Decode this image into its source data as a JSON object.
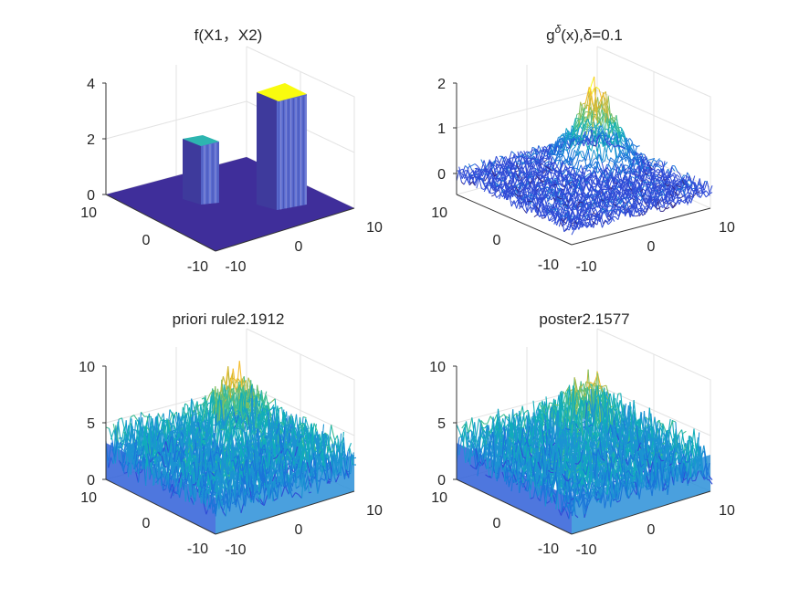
{
  "figure": {
    "layout": "2x2 subplots",
    "view": "3-D surface, default azimuth/elevation"
  },
  "chart_data": [
    {
      "type": "surface",
      "title": "f(X1，X2)",
      "title_parts": null,
      "xlabel": "",
      "ylabel": "",
      "zlabel": "",
      "xlim": [
        -10,
        10
      ],
      "ylim": [
        -10,
        10
      ],
      "zlim": [
        0,
        4
      ],
      "x_ticks": [
        "-10",
        "0",
        "10"
      ],
      "y_ticks": [
        "-10",
        "0",
        "10"
      ],
      "z_ticks": [
        "0",
        "2",
        "4"
      ],
      "grid": true,
      "colormap": "parula",
      "features": [
        {
          "shape": "block",
          "height": 2,
          "color": "#2db5b0"
        },
        {
          "shape": "block",
          "height": 4,
          "color": "#f9fb0e"
        }
      ],
      "base_value": 0,
      "base_color": "#3f2e9a"
    },
    {
      "type": "surface",
      "title": "g^δ(x),δ=0.1",
      "title_parts": {
        "base": "g",
        "sup": "δ",
        "rest": "(x),δ=0.1"
      },
      "xlabel": "",
      "ylabel": "",
      "zlabel": "",
      "xlim": [
        -10,
        10
      ],
      "ylim": [
        -10,
        10
      ],
      "zlim": [
        -0.5,
        2
      ],
      "x_ticks": [
        "-10",
        "0",
        "10"
      ],
      "y_ticks": [
        "-10",
        "0",
        "10"
      ],
      "z_ticks": [
        "0",
        "1",
        "2"
      ],
      "grid": true,
      "colormap": "parula",
      "noise_level": 0.1,
      "peak_height": 1.6
    },
    {
      "type": "surface",
      "title": "priori rule2.1912",
      "title_parts": null,
      "xlabel": "",
      "ylabel": "",
      "zlabel": "",
      "xlim": [
        -10,
        10
      ],
      "ylim": [
        -10,
        10
      ],
      "zlim": [
        0,
        10
      ],
      "x_ticks": [
        "-10",
        "0",
        "10"
      ],
      "y_ticks": [
        "-10",
        "0",
        "10"
      ],
      "z_ticks": [
        "0",
        "5",
        "10"
      ],
      "grid": true,
      "colormap": "parula",
      "mean_level": 4.5,
      "peak_height": 8.5
    },
    {
      "type": "surface",
      "title": "poster2.1577",
      "title_parts": null,
      "xlabel": "",
      "ylabel": "",
      "zlabel": "",
      "xlim": [
        -10,
        10
      ],
      "ylim": [
        -10,
        10
      ],
      "zlim": [
        0,
        10
      ],
      "x_ticks": [
        "-10",
        "0",
        "10"
      ],
      "y_ticks": [
        "-10",
        "0",
        "10"
      ],
      "z_ticks": [
        "0",
        "5",
        "10"
      ],
      "grid": true,
      "colormap": "parula",
      "mean_level": 4.5,
      "peak_height": 8.0
    }
  ]
}
